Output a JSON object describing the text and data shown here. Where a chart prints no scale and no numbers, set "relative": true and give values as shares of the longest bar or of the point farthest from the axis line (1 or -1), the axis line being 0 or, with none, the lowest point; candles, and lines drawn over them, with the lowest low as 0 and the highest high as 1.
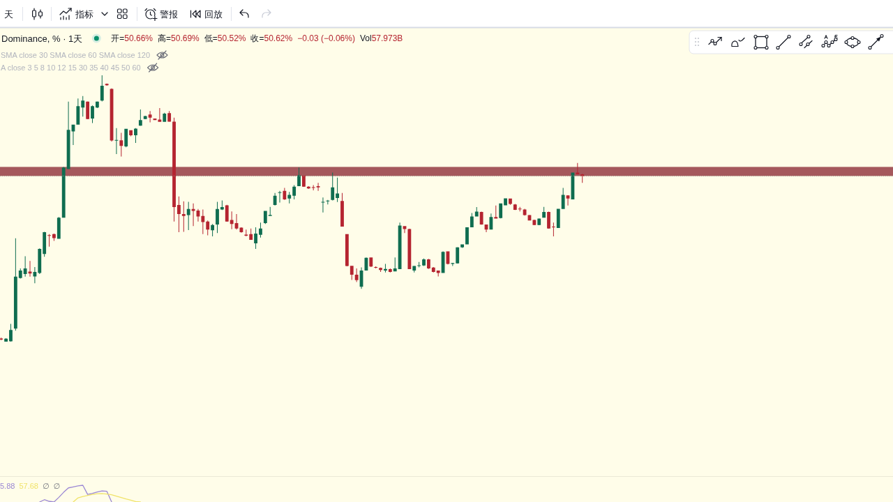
{
  "chart_data": [
    {
      "type": "candlestick",
      "title": "Dominance, % · 1天",
      "relative": true,
      "annotations": [
        "天",
        "指标",
        "警报",
        "回放",
        "开=50.66%",
        "高=50.69%",
        "低=50.52%",
        "收=50.62%",
        "−0.03 (−0.06%)",
        "Vol57.973B",
        "SMA close 30 SMA close 60 SMA close 120",
        "A close 3 5 8 10 12 15 30 35 40 45 50 60"
      ],
      "categories": [
        null,
        null,
        null,
        null,
        null,
        null,
        null,
        null,
        null,
        null,
        null,
        null,
        null,
        null,
        null,
        null,
        null,
        null,
        null,
        null,
        null,
        null,
        null,
        null,
        null,
        null,
        null,
        null,
        null,
        null,
        null,
        null,
        null,
        null,
        null,
        null,
        null,
        null,
        null,
        null,
        null,
        null,
        null,
        null,
        null,
        null,
        null,
        null,
        null,
        null,
        null,
        null,
        null,
        null,
        null,
        null,
        null,
        null,
        null,
        null,
        null,
        null,
        null,
        null,
        null,
        null,
        null,
        null,
        null,
        null,
        null,
        null,
        null,
        null,
        null,
        null,
        null,
        null,
        null,
        null,
        null,
        null,
        null,
        null,
        null,
        null,
        null,
        null,
        null,
        null,
        null,
        null,
        null,
        null,
        null,
        null,
        null,
        null,
        null,
        null,
        null,
        null,
        null,
        null,
        null,
        null,
        null,
        null,
        null,
        null,
        null,
        null,
        null,
        null,
        null,
        null,
        null,
        null,
        null,
        null,
        null,
        null
      ],
      "ohlc": [
        [
          0.012,
          0.015,
          0.005,
          0.008
        ],
        [
          0.0,
          0.013,
          0.0,
          0.011
        ],
        [
          0.001,
          0.067,
          0.0,
          0.044
        ],
        [
          0.049,
          0.388,
          0.041,
          0.244
        ],
        [
          0.239,
          0.275,
          0.237,
          0.267
        ],
        [
          0.254,
          0.321,
          0.244,
          0.275
        ],
        [
          0.263,
          0.303,
          0.244,
          0.256
        ],
        [
          0.245,
          0.28,
          0.219,
          0.262
        ],
        [
          0.258,
          0.35,
          0.254,
          0.348
        ],
        [
          0.329,
          0.412,
          0.319,
          0.411
        ],
        [
          0.4,
          0.404,
          0.357,
          0.397
        ],
        [
          0.404,
          0.406,
          0.378,
          0.389
        ],
        [
          0.386,
          0.468,
          0.386,
          0.465
        ],
        [
          0.465,
          0.656,
          0.465,
          0.654
        ],
        [
          0.648,
          0.901,
          0.648,
          0.795
        ],
        [
          0.789,
          0.815,
          0.738,
          0.815
        ],
        [
          0.815,
          0.913,
          0.815,
          0.884
        ],
        [
          0.879,
          0.922,
          0.845,
          0.905
        ],
        [
          0.901,
          0.902,
          0.835,
          0.836
        ],
        [
          0.838,
          0.887,
          0.821,
          0.884
        ],
        [
          0.879,
          0.902,
          0.877,
          0.901
        ],
        [
          0.905,
          1,
          0.902,
          0.961
        ],
        [
          0.968,
          0.969,
          0.961,
          0.963
        ],
        [
          0.949,
          0.951,
          0.751,
          0.755
        ],
        [
          0.755,
          0.802,
          0.704,
          0.757
        ],
        [
          0.756,
          0.784,
          0.695,
          0.735
        ],
        [
          0.733,
          0.799,
          0.73,
          0.799
        ],
        [
          0.794,
          0.794,
          0.771,
          0.775
        ],
        [
          0.775,
          0.802,
          0.746,
          0.8
        ],
        [
          0.811,
          0.872,
          0.81,
          0.832
        ],
        [
          0.836,
          0.848,
          0.835,
          0.847
        ],
        [
          0.853,
          0.866,
          0.823,
          0.841
        ],
        [
          0.838,
          0.838,
          0.832,
          0.832
        ],
        [
          0.834,
          0.877,
          0.825,
          0.825
        ],
        [
          0.825,
          0.859,
          0.825,
          0.856
        ],
        [
          0.858,
          0.866,
          0.825,
          0.826
        ],
        [
          0.826,
          0.841,
          0.451,
          0.505
        ],
        [
          0.513,
          0.545,
          0.411,
          0.479
        ],
        [
          0.479,
          0.527,
          0.412,
          0.472
        ],
        [
          0.475,
          0.525,
          0.419,
          0.498
        ],
        [
          0.498,
          0.519,
          0.434,
          0.491
        ],
        [
          0.492,
          0.498,
          0.451,
          0.47
        ],
        [
          0.472,
          0.496,
          0.404,
          0.449
        ],
        [
          0.451,
          0.455,
          0.399,
          0.421
        ],
        [
          0.418,
          0.442,
          0.395,
          0.438
        ],
        [
          0.44,
          0.525,
          0.408,
          0.498
        ],
        [
          0.496,
          0.53,
          0.494,
          0.505
        ],
        [
          0.512,
          0.514,
          0.45,
          0.451
        ],
        [
          0.457,
          0.489,
          0.422,
          0.442
        ],
        [
          0.445,
          0.479,
          0.421,
          0.425
        ],
        [
          0.428,
          0.429,
          0.409,
          0.411
        ],
        [
          0.402,
          0.421,
          0.395,
          0.398
        ],
        [
          0.404,
          0.425,
          0.382,
          0.382
        ],
        [
          0.369,
          0.429,
          0.348,
          0.406
        ],
        [
          0.401,
          0.447,
          0.391,
          0.425
        ],
        [
          0.445,
          0.491,
          0.442,
          0.491
        ],
        [
          0.472,
          0.506,
          0.472,
          0.476
        ],
        [
          0.513,
          0.558,
          0.511,
          0.548
        ],
        [
          0.559,
          0.566,
          0.522,
          0.56
        ],
        [
          0.566,
          0.577,
          0.532,
          0.534
        ],
        [
          0.537,
          0.562,
          0.519,
          0.551
        ],
        [
          0.548,
          0.588,
          0.534,
          0.582
        ],
        [
          0.584,
          0.654,
          0.584,
          0.625
        ],
        [
          0.624,
          0.625,
          0.581,
          0.582
        ],
        [
          0.582,
          0.584,
          0.573,
          0.575
        ],
        [
          0.579,
          0.588,
          0.568,
          0.578
        ],
        [
          0.584,
          0.596,
          0.566,
          0.579
        ],
        [
          0.523,
          0.541,
          0.485,
          0.524
        ],
        [
          0.527,
          0.532,
          0.515,
          0.529
        ],
        [
          0.532,
          0.635,
          0.53,
          0.579
        ],
        [
          0.539,
          0.616,
          0.524,
          0.556
        ],
        [
          0.528,
          0.558,
          0.432,
          0.432
        ],
        [
          0.404,
          0.404,
          0.283,
          0.284
        ],
        [
          0.285,
          0.285,
          0.232,
          0.251
        ],
        [
          0.251,
          0.275,
          0.224,
          0.231
        ],
        [
          0.206,
          0.279,
          0.198,
          0.267
        ],
        [
          0.267,
          0.316,
          0.267,
          0.315
        ],
        [
          0.316,
          0.316,
          0.28,
          0.282
        ],
        [
          0.28,
          0.283,
          0.275,
          0.278
        ],
        [
          0.277,
          0.278,
          0.262,
          0.269
        ],
        [
          0.267,
          0.292,
          0.26,
          0.273
        ],
        [
          0.272,
          0.275,
          0.26,
          0.262
        ],
        [
          0.264,
          0.316,
          0.264,
          0.275
        ],
        [
          0.272,
          0.447,
          0.272,
          0.436
        ],
        [
          0.434,
          0.434,
          0.408,
          0.423
        ],
        [
          0.423,
          0.424,
          0.272,
          0.272
        ],
        [
          0.267,
          0.285,
          0.26,
          0.284
        ],
        [
          0.285,
          0.299,
          0.279,
          0.286
        ],
        [
          0.286,
          0.312,
          0.284,
          0.309
        ],
        [
          0.309,
          0.311,
          0.273,
          0.275
        ],
        [
          0.278,
          0.28,
          0.26,
          0.262
        ],
        [
          0.267,
          0.267,
          0.245,
          0.258
        ],
        [
          0.258,
          0.339,
          0.258,
          0.337
        ],
        [
          0.339,
          0.339,
          0.29,
          0.292
        ],
        [
          0.292,
          0.296,
          0.284,
          0.295
        ],
        [
          0.294,
          0.355,
          0.293,
          0.354
        ],
        [
          0.354,
          0.365,
          0.352,
          0.365
        ],
        [
          0.365,
          0.429,
          0.365,
          0.429
        ],
        [
          0.429,
          0.483,
          0.429,
          0.47
        ],
        [
          0.47,
          0.505,
          0.47,
          0.488
        ],
        [
          0.487,
          0.488,
          0.439,
          0.44
        ],
        [
          0.44,
          0.44,
          0.411,
          0.421
        ],
        [
          0.421,
          0.481,
          0.421,
          0.468
        ],
        [
          0.468,
          0.511,
          0.462,
          0.462
        ],
        [
          0.464,
          0.519,
          0.463,
          0.519
        ],
        [
          0.512,
          0.538,
          0.512,
          0.538
        ],
        [
          0.537,
          0.537,
          0.514,
          0.517
        ],
        [
          0.515,
          0.517,
          0.494,
          0.495
        ],
        [
          0.499,
          0.506,
          0.489,
          0.497
        ],
        [
          0.496,
          0.499,
          0.473,
          0.475
        ],
        [
          0.475,
          0.476,
          0.455,
          0.455
        ],
        [
          0.457,
          0.458,
          0.437,
          0.438
        ],
        [
          0.438,
          0.463,
          0.437,
          0.462
        ],
        [
          0.465,
          0.506,
          0.465,
          0.487
        ],
        [
          0.487,
          0.488,
          0.424,
          0.425
        ],
        [
          0.432,
          0.447,
          0.395,
          0.429
        ],
        [
          0.427,
          0.499,
          0.427,
          0.499
        ],
        [
          0.498,
          0.577,
          0.498,
          0.551
        ],
        [
          0.549,
          0.55,
          0.511,
          0.537
        ],
        [
          0.534,
          0.635,
          0.534,
          0.635
        ],
        [
          0.635,
          0.671,
          0.628,
          0.628
        ],
        [
          0.628,
          0.63,
          0.596,
          0.622
        ]
      ],
      "colors": [
        "#b52430",
        "#0f6d50",
        "#0f6d50",
        "#0f6d50",
        "#0f6d50",
        "#0f6d50",
        "#b52430",
        "#0f6d50",
        "#0f6d50",
        "#0f6d50",
        "#b52430",
        "#b52430",
        "#0f6d50",
        "#0f6d50",
        "#0f6d50",
        "#0f6d50",
        "#0f6d50",
        "#0f6d50",
        "#b52430",
        "#0f6d50",
        "#0f6d50",
        "#0f6d50",
        "#b52430",
        "#b52430",
        "#0f6d50",
        "#b52430",
        "#0f6d50",
        "#b52430",
        "#0f6d50",
        "#0f6d50",
        "#0f6d50",
        "#b52430",
        "#b52430",
        "#b52430",
        "#0f6d50",
        "#b52430",
        "#b52430",
        "#b52430",
        "#b52430",
        "#0f6d50",
        "#b52430",
        "#b52430",
        "#b52430",
        "#b52430",
        "#0f6d50",
        "#0f6d50",
        "#0f6d50",
        "#b52430",
        "#b52430",
        "#b52430",
        "#b52430",
        "#b52430",
        "#b52430",
        "#0f6d50",
        "#0f6d50",
        "#0f6d50",
        "#0f6d50",
        "#0f6d50",
        "#0f6d50",
        "#b52430",
        "#0f6d50",
        "#0f6d50",
        "#0f6d50",
        "#b52430",
        "#b52430",
        "#b52430",
        "#b52430",
        "#0f6d50",
        "#0f6d50",
        "#0f6d50",
        "#0f6d50",
        "#b52430",
        "#b52430",
        "#b52430",
        "#b52430",
        "#0f6d50",
        "#0f6d50",
        "#b52430",
        "#b52430",
        "#b52430",
        "#0f6d50",
        "#b52430",
        "#0f6d50",
        "#0f6d50",
        "#b52430",
        "#b52430",
        "#0f6d50",
        "#0f6d50",
        "#0f6d50",
        "#b52430",
        "#b52430",
        "#b52430",
        "#0f6d50",
        "#b52430",
        "#0f6d50",
        "#0f6d50",
        "#0f6d50",
        "#0f6d50",
        "#0f6d50",
        "#0f6d50",
        "#b52430",
        "#b52430",
        "#0f6d50",
        "#b52430",
        "#0f6d50",
        "#0f6d50",
        "#b52430",
        "#b52430",
        "#b52430",
        "#b52430",
        "#b52430",
        "#b52430",
        "#0f6d50",
        "#0f6d50",
        "#b52430",
        "#b52430",
        "#0f6d50",
        "#0f6d50",
        "#b52430",
        "#0f6d50",
        "#b52430",
        "#b52430"
      ],
      "bands": [
        {
          "axis": "y",
          "from": 0.622,
          "to": 0.656,
          "color": "#a5585c"
        }
      ],
      "ref_lines": [
        {
          "axis": "y",
          "value": 0.622,
          "color": "#9e9b8c",
          "line_style": "dotted"
        }
      ]
    },
    {
      "type": "line",
      "relative": true,
      "categories": [
        null,
        null,
        null,
        null,
        null,
        null,
        null,
        null,
        null,
        null,
        null,
        null,
        null,
        null,
        null,
        null,
        null,
        null,
        null,
        null,
        null,
        null,
        null,
        null,
        null,
        null,
        null,
        null,
        null,
        null,
        null,
        null,
        null,
        null,
        null,
        null,
        null,
        null,
        null,
        null,
        null,
        null,
        null,
        null,
        null,
        null,
        null,
        null,
        null,
        null,
        null,
        null,
        null,
        null,
        null,
        null,
        null,
        null,
        null,
        null,
        null,
        null,
        null,
        null,
        null,
        null,
        null,
        null,
        null,
        null,
        null,
        null,
        null,
        null,
        null,
        null,
        null,
        null,
        null,
        null,
        null,
        null,
        null,
        null,
        null,
        null,
        null,
        null,
        null,
        null,
        null,
        null,
        null,
        null,
        null,
        null,
        null,
        null,
        null,
        null,
        null,
        null,
        null,
        null,
        null,
        null,
        null,
        null,
        null,
        null,
        null,
        null,
        null,
        null,
        null,
        null,
        null,
        null,
        null,
        null,
        null,
        null
      ],
      "series": [
        {
          "color": "#9b87d4",
          "values": [
            null,
            null,
            null,
            null,
            null,
            null,
            null,
            null,
            0,
            0.136,
            0.041,
            0,
            0.276,
            0.58,
            0.844,
            0.905,
            0.963,
            1,
            0.453,
            0.514,
            0.597,
            0.658,
            0.638,
            0,
            null,
            null,
            null,
            null,
            null,
            null,
            null,
            null,
            null,
            null,
            null,
            null,
            null,
            null,
            null,
            null,
            null,
            null,
            null,
            null,
            null,
            null,
            null,
            null,
            null,
            null,
            null,
            null,
            null,
            null,
            null,
            null,
            null,
            null,
            null,
            null,
            null,
            null,
            null,
            null,
            null,
            null,
            null,
            null,
            null,
            null,
            null,
            null,
            null,
            null,
            null,
            null,
            null,
            null,
            null,
            null,
            null,
            null,
            null,
            null,
            null,
            null,
            null,
            null,
            null,
            null,
            null,
            null,
            null,
            null,
            null,
            null,
            null,
            null,
            null,
            null,
            null,
            null,
            null,
            null,
            null,
            null,
            null,
            null,
            null,
            null,
            null,
            null,
            null,
            null,
            null,
            null,
            null,
            null,
            null,
            null,
            null,
            null
          ]
        },
        {
          "color": "#f0e36a",
          "values": [
            null,
            null,
            null,
            null,
            null,
            null,
            null,
            null,
            null,
            null,
            null,
            null,
            null,
            null,
            null,
            0,
            0.247,
            0.329,
            0.391,
            0.453,
            0.494,
            0.506,
            0.473,
            0.432,
            0.35,
            0.267,
            0.185,
            0.111,
            0.029,
            0,
            null,
            null,
            null,
            null,
            null,
            null,
            null,
            null,
            null,
            null,
            null,
            null,
            null,
            null,
            null,
            null,
            null,
            null,
            null,
            null,
            null,
            null,
            null,
            null,
            null,
            null,
            null,
            null,
            null,
            null,
            null,
            null,
            null,
            null,
            null,
            null,
            null,
            null,
            null,
            null,
            null,
            null,
            null,
            null,
            null,
            null,
            null,
            null,
            null,
            null,
            null,
            null,
            null,
            null,
            null,
            null,
            null,
            null,
            null,
            null,
            null,
            null,
            null,
            null,
            null,
            null,
            null,
            null,
            null,
            null,
            null,
            null,
            null,
            null,
            null,
            null,
            null,
            null,
            null,
            null,
            null,
            null,
            null,
            null,
            null,
            null,
            null,
            null,
            null,
            null,
            null,
            null
          ]
        }
      ],
      "annotations": [
        "5.88",
        "57.68",
        "∅",
        "∅"
      ]
    }
  ]
}
